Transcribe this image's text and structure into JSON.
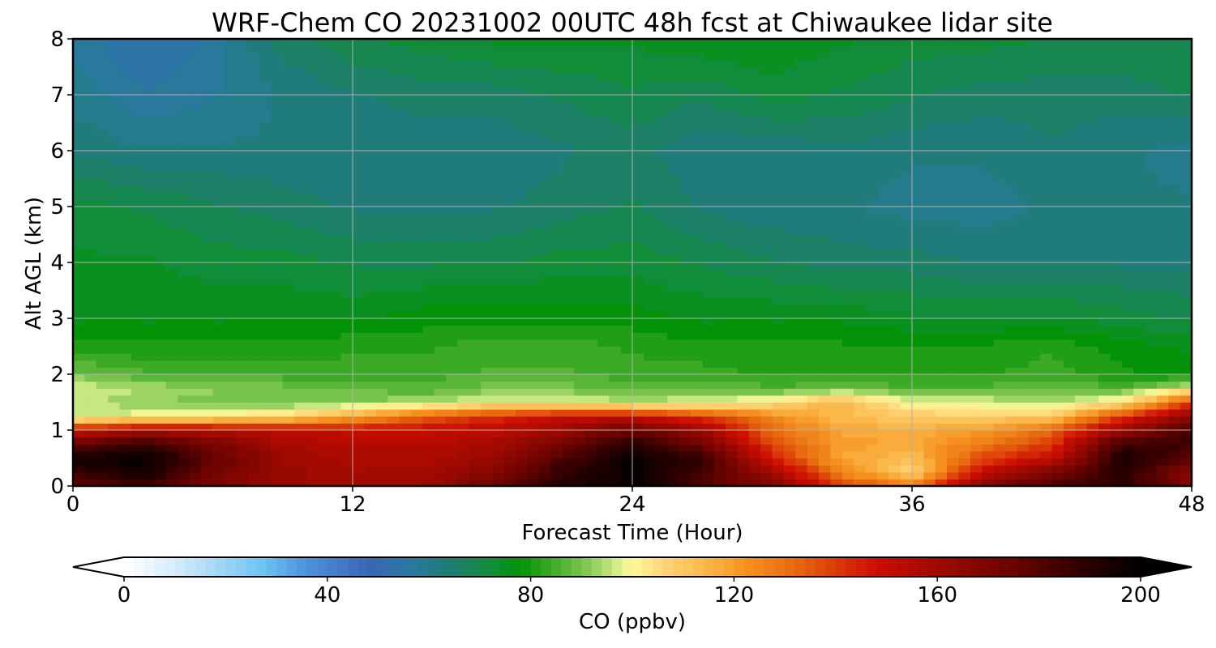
{
  "chart_data": {
    "type": "heatmap",
    "title": "WRF-Chem CO  20231002 00UTC 48h fcst at Chiwaukee lidar site",
    "xlabel": "Forecast Time (Hour)",
    "ylabel": "Alt AGL (km)",
    "xlim": [
      0,
      48
    ],
    "ylim": [
      0,
      8
    ],
    "xticks": [
      "0",
      "12",
      "24",
      "36",
      "48"
    ],
    "yticks": [
      "0",
      "1",
      "2",
      "3",
      "4",
      "5",
      "6",
      "7",
      "8"
    ],
    "grid": true,
    "colorbar": {
      "label": "CO  (ppbv)",
      "min": 0,
      "max": 200,
      "ticks": [
        "0",
        "40",
        "80",
        "120",
        "160",
        "200"
      ],
      "extend": "both",
      "colormap": [
        {
          "v": 0,
          "c": "#ffffff"
        },
        {
          "v": 10,
          "c": "#d6ecfa"
        },
        {
          "v": 20,
          "c": "#99d4f6"
        },
        {
          "v": 27,
          "c": "#6ec4f3"
        },
        {
          "v": 35,
          "c": "#4f97dc"
        },
        {
          "v": 48,
          "c": "#3a66b6"
        },
        {
          "v": 56,
          "c": "#2978a1"
        },
        {
          "v": 64,
          "c": "#1f7d76"
        },
        {
          "v": 72,
          "c": "#118d3a"
        },
        {
          "v": 78,
          "c": "#039308"
        },
        {
          "v": 86,
          "c": "#4fb22e"
        },
        {
          "v": 92,
          "c": "#8dcc5b"
        },
        {
          "v": 97,
          "c": "#d4ee8a"
        },
        {
          "v": 100,
          "c": "#fff99a"
        },
        {
          "v": 106,
          "c": "#ffd77a"
        },
        {
          "v": 114,
          "c": "#fbb84b"
        },
        {
          "v": 122,
          "c": "#f69421"
        },
        {
          "v": 132,
          "c": "#e86a0f"
        },
        {
          "v": 148,
          "c": "#cd0c00"
        },
        {
          "v": 160,
          "c": "#9e0a00"
        },
        {
          "v": 175,
          "c": "#6b0300"
        },
        {
          "v": 188,
          "c": "#300000"
        },
        {
          "v": 200,
          "c": "#000000"
        }
      ]
    },
    "approximate_field": {
      "description": "CO mixing ratio (ppbv) at forecast hours and altitudes (km AGL), estimated from the contour fill",
      "time": [
        0,
        3,
        6,
        9,
        12,
        15,
        18,
        21,
        24,
        27,
        30,
        33,
        36,
        39,
        42,
        45,
        48
      ],
      "altitude": [
        0,
        0.25,
        0.5,
        0.75,
        1.0,
        1.25,
        1.5,
        1.75,
        2.0,
        2.5,
        3.0,
        4.0,
        5.0,
        6.0,
        7.0,
        8.0
      ],
      "values": [
        [
          175,
          185,
          170,
          162,
          158,
          160,
          175,
          192,
          198,
          180,
          168,
          140,
          128,
          168,
          182,
          190,
          168
        ],
        [
          186,
          196,
          172,
          162,
          158,
          158,
          168,
          188,
          198,
          184,
          160,
          125,
          106,
          150,
          170,
          190,
          166
        ],
        [
          196,
          198,
          178,
          160,
          156,
          156,
          160,
          182,
          198,
          188,
          145,
          118,
          112,
          138,
          150,
          194,
          178
        ],
        [
          176,
          188,
          172,
          158,
          154,
          154,
          158,
          172,
          190,
          174,
          138,
          120,
          118,
          128,
          140,
          186,
          186
        ],
        [
          150,
          158,
          156,
          152,
          150,
          150,
          152,
          160,
          176,
          160,
          132,
          118,
          116,
          120,
          132,
          162,
          184
        ],
        [
          95,
          100,
          102,
          106,
          118,
          132,
          142,
          150,
          150,
          140,
          124,
          112,
          110,
          108,
          110,
          140,
          166
        ],
        [
          96,
          92,
          90,
          90,
          92,
          94,
          100,
          98,
          96,
          98,
          104,
          116,
          98,
          98,
          94,
          104,
          140
        ],
        [
          98,
          94,
          92,
          90,
          88,
          86,
          90,
          90,
          87,
          88,
          86,
          88,
          86,
          86,
          88,
          86,
          98
        ],
        [
          90,
          86,
          86,
          84,
          84,
          84,
          86,
          86,
          84,
          84,
          82,
          82,
          82,
          82,
          84,
          80,
          78
        ],
        [
          80,
          80,
          80,
          80,
          82,
          82,
          84,
          84,
          82,
          80,
          80,
          80,
          80,
          80,
          82,
          78,
          76
        ],
        [
          76,
          76,
          76,
          76,
          76,
          78,
          78,
          78,
          78,
          76,
          76,
          76,
          74,
          74,
          74,
          72,
          70
        ],
        [
          74,
          74,
          72,
          72,
          70,
          70,
          70,
          72,
          72,
          70,
          68,
          66,
          66,
          64,
          64,
          64,
          64
        ],
        [
          72,
          70,
          68,
          66,
          64,
          64,
          64,
          66,
          68,
          64,
          62,
          62,
          60,
          60,
          62,
          62,
          62
        ],
        [
          64,
          62,
          62,
          62,
          62,
          62,
          62,
          64,
          66,
          62,
          62,
          64,
          62,
          62,
          64,
          62,
          60
        ],
        [
          60,
          56,
          58,
          62,
          64,
          66,
          66,
          68,
          70,
          68,
          72,
          70,
          68,
          66,
          66,
          66,
          68
        ],
        [
          58,
          52,
          56,
          66,
          70,
          72,
          74,
          74,
          74,
          76,
          76,
          74,
          72,
          72,
          70,
          70,
          70
        ]
      ]
    }
  }
}
